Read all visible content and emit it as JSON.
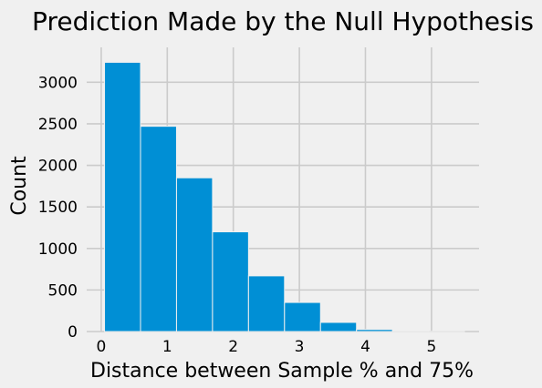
{
  "chart_data": {
    "type": "bar",
    "title": "Prediction Made by the Null Hypothesis",
    "xlabel": "Distance between Sample % and 75%",
    "ylabel": "Count",
    "xlim": [
      -0.22,
      5.72
    ],
    "ylim": [
      0,
      3420
    ],
    "x_ticks": [
      0,
      1,
      2,
      3,
      4,
      5
    ],
    "y_ticks": [
      0,
      500,
      1000,
      1500,
      2000,
      2500,
      3000
    ],
    "grid": true,
    "bin_edges": [
      0.05,
      0.595,
      1.14,
      1.685,
      2.23,
      2.775,
      3.32,
      3.865,
      4.41,
      4.955,
      5.5
    ],
    "values": [
      3240,
      2470,
      1850,
      1200,
      670,
      350,
      110,
      25,
      3,
      1
    ],
    "colors": {
      "bar": "#008fd5",
      "background": "#f0f0f0",
      "grid": "#cbcbcb"
    }
  }
}
